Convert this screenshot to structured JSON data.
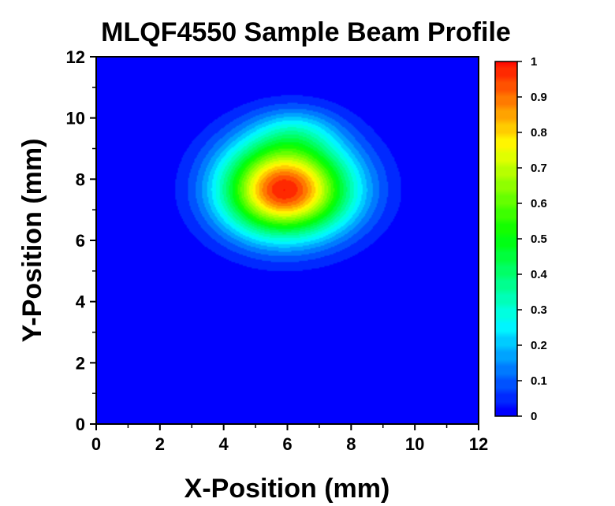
{
  "chart_data": {
    "type": "heatmap",
    "title": "MLQF4550 Sample Beam Profile",
    "xlabel": "X-Position (mm)",
    "ylabel": "Y-Position (mm)",
    "xlim": [
      0,
      12
    ],
    "ylim": [
      0,
      12
    ],
    "x_ticks": [
      "0",
      "2",
      "4",
      "6",
      "8",
      "10",
      "12"
    ],
    "y_ticks": [
      "0",
      "2",
      "4",
      "6",
      "8",
      "10",
      "12"
    ],
    "colorbar": {
      "range": [
        0,
        1
      ],
      "tick_labels": [
        "0",
        "0.1",
        "0.2",
        "0.3",
        "0.4",
        "0.5",
        "0.6",
        "0.7",
        "0.8",
        "0.9",
        "1"
      ],
      "colormap": [
        "#0000ff",
        "#00ffff",
        "#00ff00",
        "#ffff00",
        "#ff0000"
      ]
    },
    "peak": {
      "x": 5.9,
      "y": 7.65,
      "value": 1.0
    },
    "profile": {
      "sigma_x_left": 1.35,
      "sigma_x_right": 1.45,
      "sigma_y_down": 1.05,
      "sigma_y_up": 1.15,
      "secondary_lobe": {
        "x": 6.3,
        "y": 9.6,
        "value": 0.12
      }
    },
    "grid": false,
    "legend": "colorbar-right"
  }
}
